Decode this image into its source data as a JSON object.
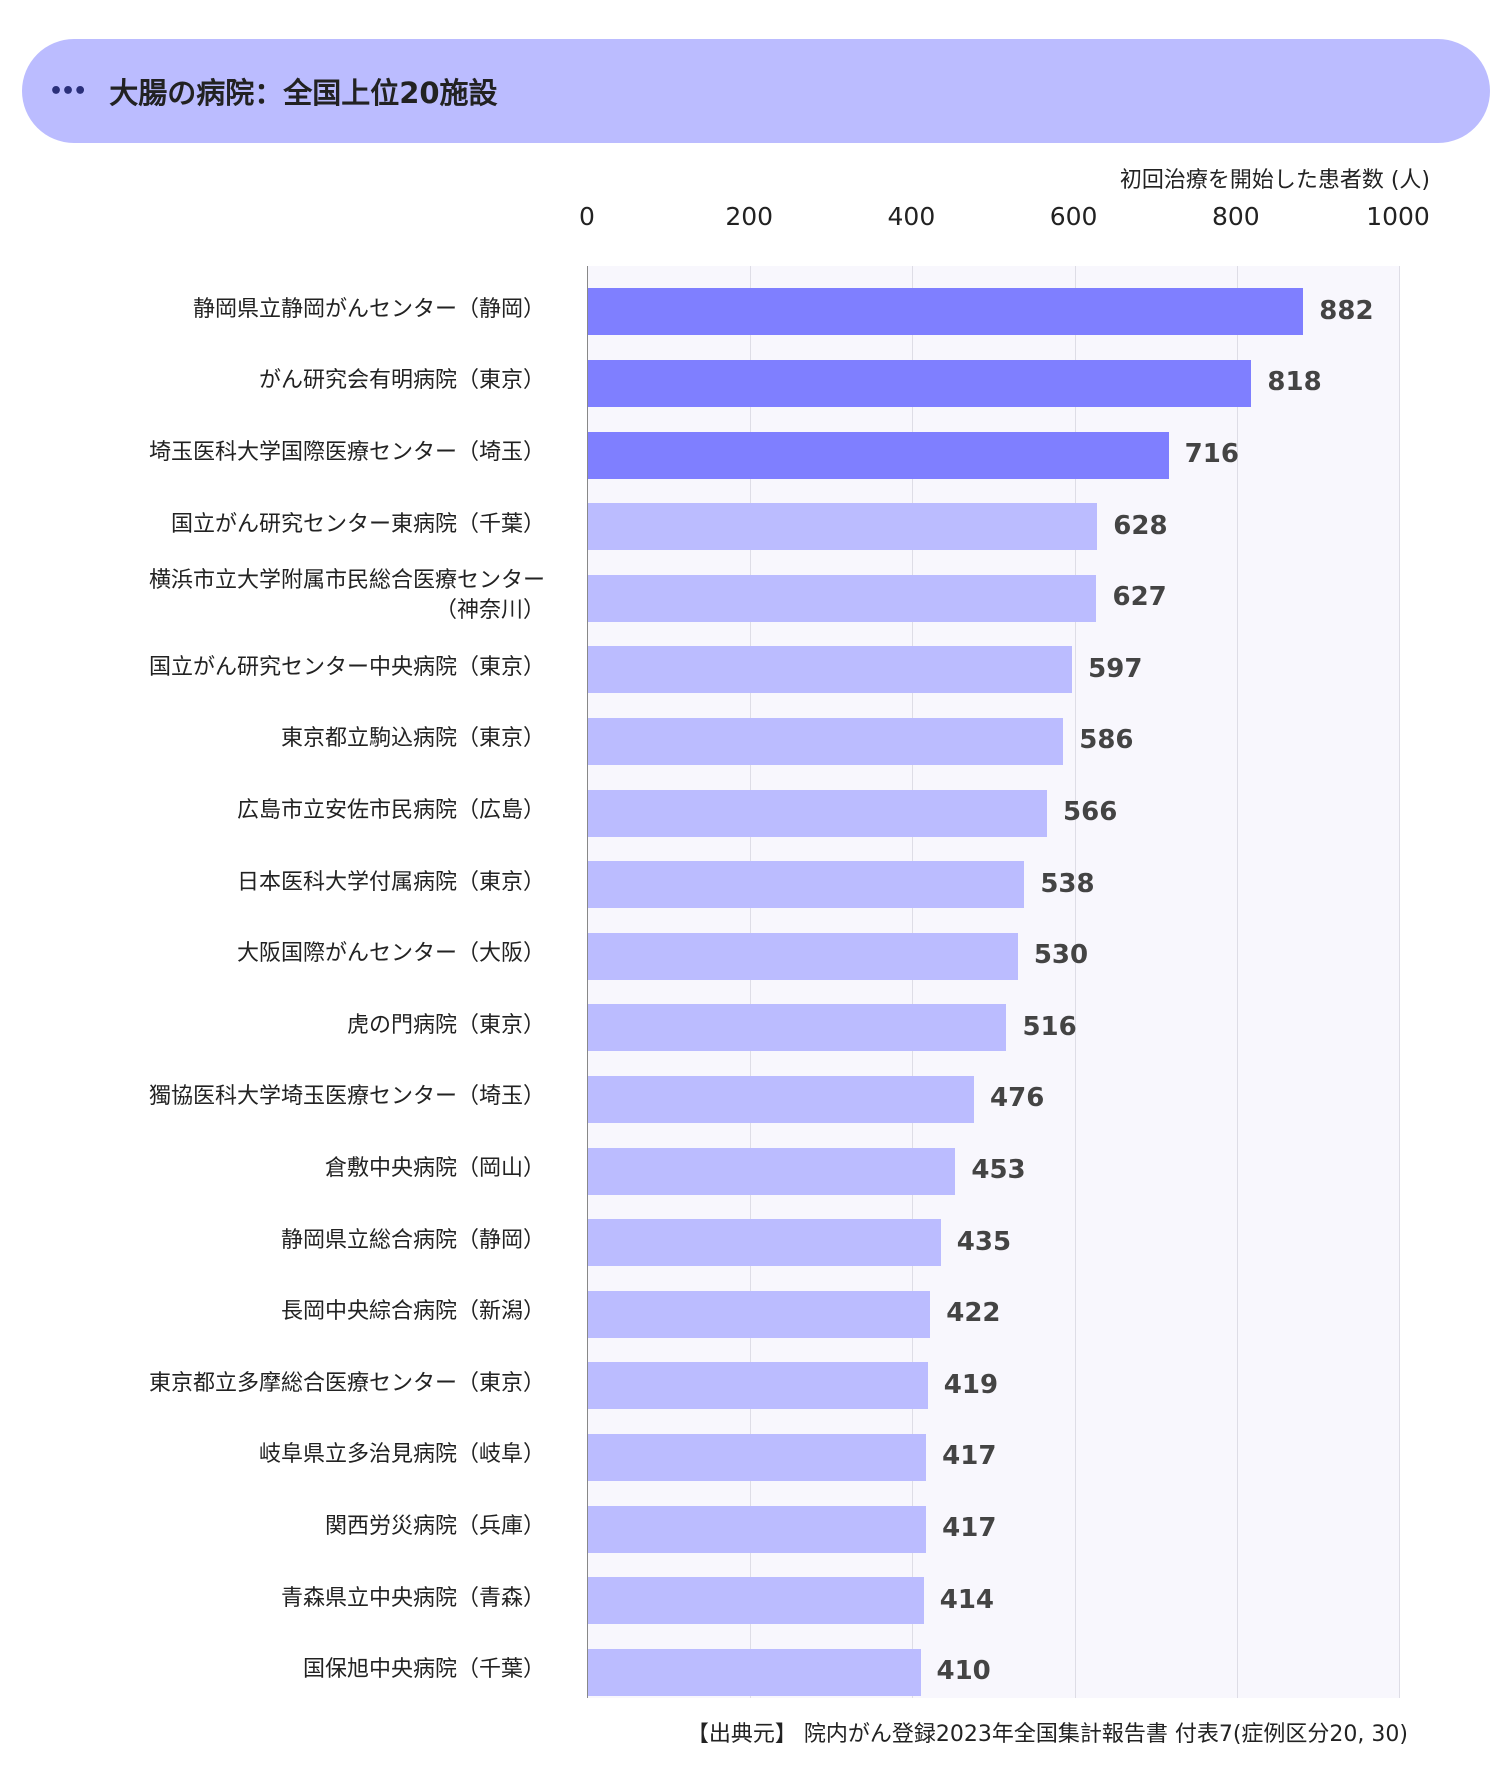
{
  "header": {
    "icon": "ellipsis-icon",
    "title": "大腸の病院：全国上位20施設"
  },
  "chart_data": {
    "type": "bar",
    "orientation": "horizontal",
    "title": "大腸の病院：全国上位20施設",
    "xlabel": "初回治療を開始した患者数 (人)",
    "ylabel": "",
    "xlim": [
      0,
      1000
    ],
    "xticks": [
      "0",
      "200",
      "400",
      "600",
      "800",
      "1000"
    ],
    "grid": true,
    "categories": [
      "静岡県立静岡がんセンター（静岡）",
      "がん研究会有明病院（東京）",
      "埼玉医科大学国際医療センター（埼玉）",
      "国立がん研究センター東病院（千葉）",
      "横浜市立大学附属市民総合医療センター（神奈川）",
      "国立がん研究センター中央病院（東京）",
      "東京都立駒込病院（東京）",
      "広島市立安佐市民病院（広島）",
      "日本医科大学付属病院（東京）",
      "大阪国際がんセンター（大阪）",
      "虎の門病院（東京）",
      "獨協医科大学埼玉医療センター（埼玉）",
      "倉敷中央病院（岡山）",
      "静岡県立総合病院（静岡）",
      "長岡中央綜合病院（新潟）",
      "東京都立多摩総合医療センター（東京）",
      "岐阜県立多治見病院（岐阜）",
      "関西労災病院（兵庫）",
      "青森県立中央病院（青森）",
      "国保旭中央病院（千葉）"
    ],
    "category_lines": [
      [
        "静岡県立静岡がんセンター（静岡）"
      ],
      [
        "がん研究会有明病院（東京）"
      ],
      [
        "埼玉医科大学国際医療センター（埼玉）"
      ],
      [
        "国立がん研究センター東病院（千葉）"
      ],
      [
        "横浜市立大学附属市民総合医療センター",
        "（神奈川）"
      ],
      [
        "国立がん研究センター中央病院（東京）"
      ],
      [
        "東京都立駒込病院（東京）"
      ],
      [
        "広島市立安佐市民病院（広島）"
      ],
      [
        "日本医科大学付属病院（東京）"
      ],
      [
        "大阪国際がんセンター（大阪）"
      ],
      [
        "虎の門病院（東京）"
      ],
      [
        "獨協医科大学埼玉医療センター（埼玉）"
      ],
      [
        "倉敷中央病院（岡山）"
      ],
      [
        "静岡県立総合病院（静岡）"
      ],
      [
        "長岡中央綜合病院（新潟）"
      ],
      [
        "東京都立多摩総合医療センター（東京）"
      ],
      [
        "岐阜県立多治見病院（岐阜）"
      ],
      [
        "関西労災病院（兵庫）"
      ],
      [
        "青森県立中央病院（青森）"
      ],
      [
        "国保旭中央病院（千葉）"
      ]
    ],
    "values": [
      882,
      818,
      716,
      628,
      627,
      597,
      586,
      566,
      538,
      530,
      516,
      476,
      453,
      435,
      422,
      419,
      417,
      417,
      414,
      410
    ],
    "colors": {
      "top3": "#7f7fff",
      "rest": "#bbbcff"
    },
    "source": "【出典元】 院内がん登録2023年全国集計報告書 付表7(症例区分20, 30)"
  }
}
